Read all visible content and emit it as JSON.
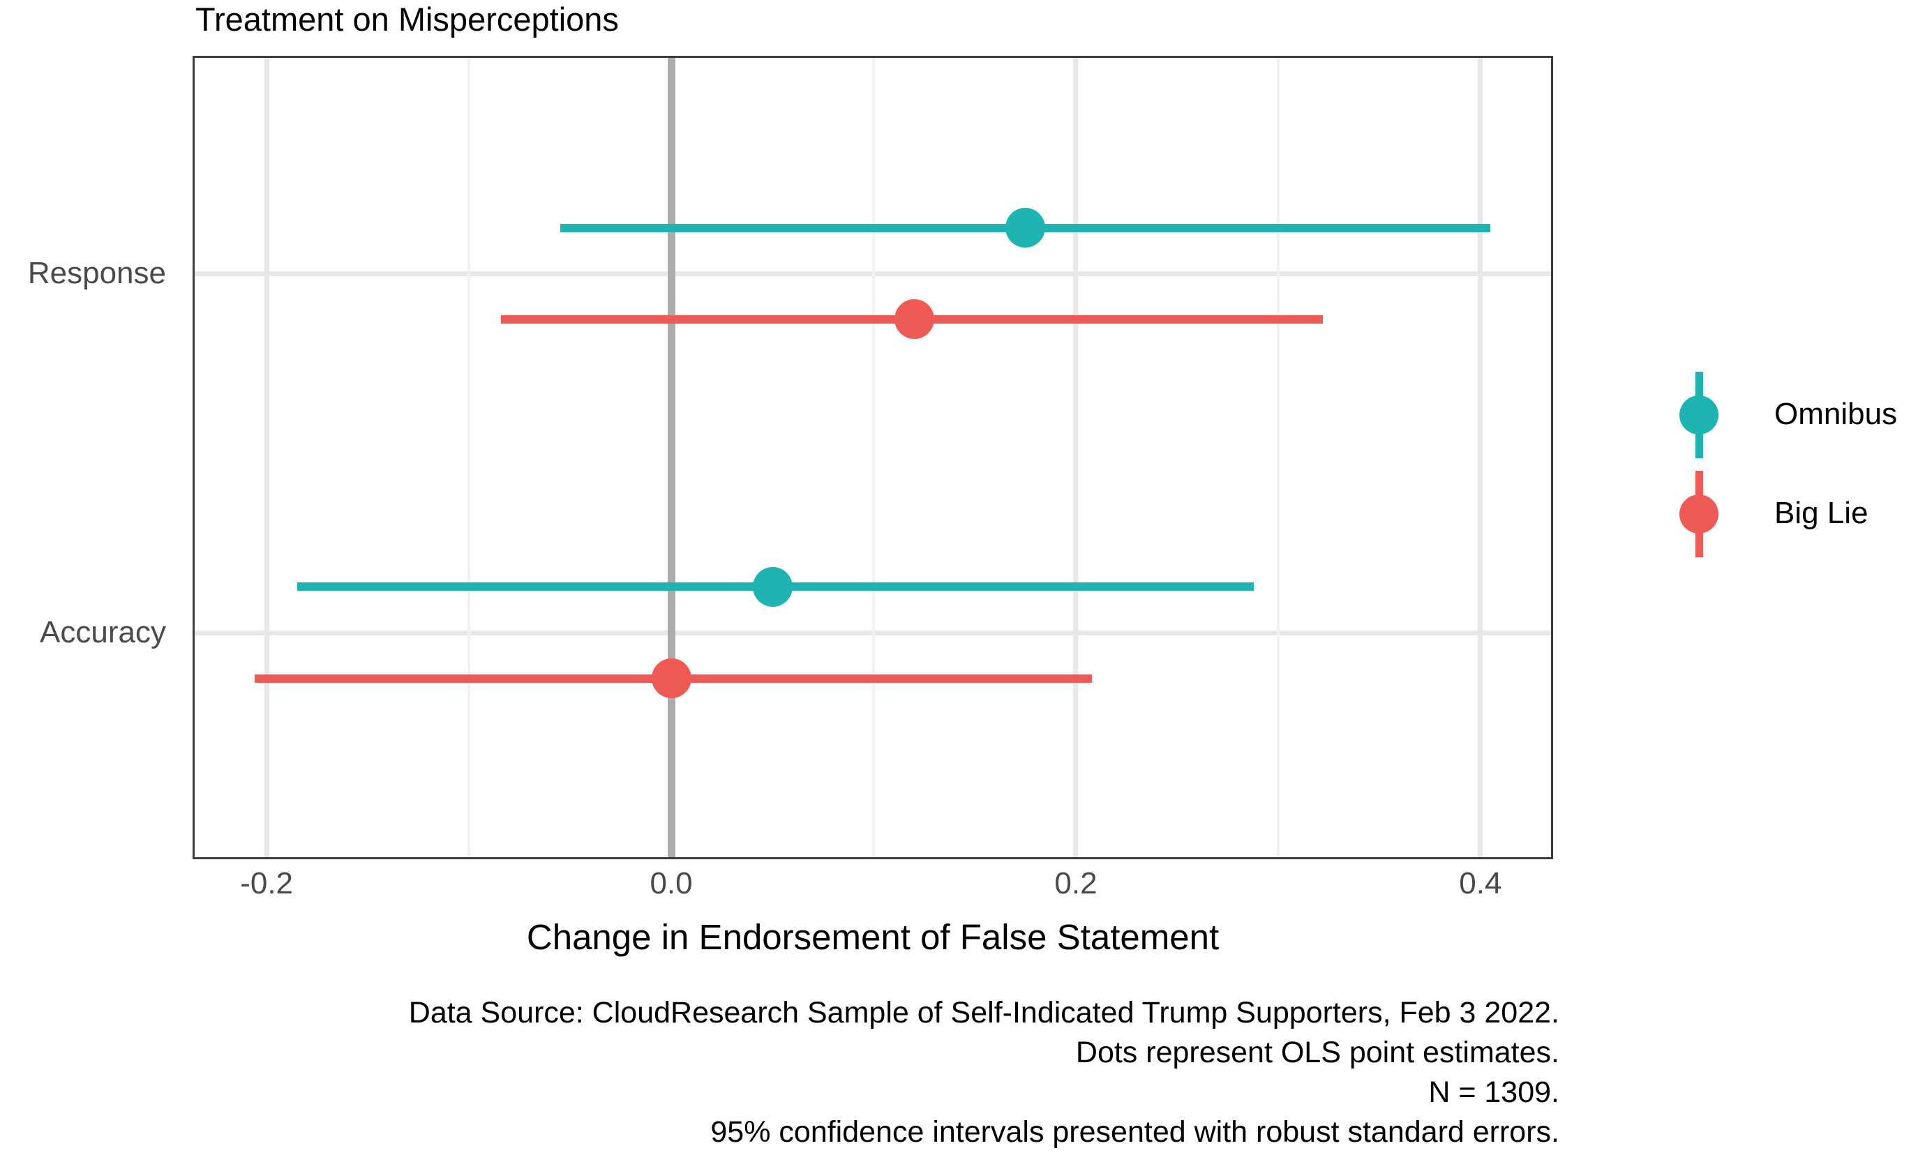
{
  "chart_data": {
    "type": "pointrange",
    "title": "Treatment on Misperceptions",
    "xlabel": "Change in Endorsement of False Statement",
    "caption_lines": [
      "Data Source: CloudResearch Sample of Self-Indicated Trump Supporters, Feb 3 2022.",
      "Dots represent OLS point estimates.",
      "N = 1309.",
      "95% confidence intervals presented with robust standard errors."
    ],
    "x_axis": {
      "domain": [
        -0.2366,
        0.4359
      ],
      "ticks": [
        -0.2,
        0.0,
        0.2,
        0.4
      ],
      "tick_labels": [
        "-0.2",
        "0.0",
        "0.2",
        "0.4"
      ],
      "minor_ticks": [
        -0.1,
        0.1,
        0.3
      ]
    },
    "y_categories": [
      {
        "label": "Response",
        "center_frac": 0.271
      },
      {
        "label": "Accuracy",
        "center_frac": 0.718
      }
    ],
    "reference_line_x": 0.0,
    "legend_position": "right",
    "series": [
      {
        "name": "Omnibus",
        "color": "#1EB4B1",
        "offset_frac": -0.057,
        "points": [
          {
            "category": "Response",
            "estimate": 0.175,
            "ci_low": -0.055,
            "ci_high": 0.405
          },
          {
            "category": "Accuracy",
            "estimate": 0.05,
            "ci_low": -0.185,
            "ci_high": 0.288
          }
        ]
      },
      {
        "name": "Big Lie",
        "color": "#F05A55",
        "offset_frac": 0.057,
        "points": [
          {
            "category": "Response",
            "estimate": 0.12,
            "ci_low": -0.084,
            "ci_high": 0.322
          },
          {
            "category": "Accuracy",
            "estimate": 0.0,
            "ci_low": -0.206,
            "ci_high": 0.208
          }
        ]
      }
    ],
    "colors": {
      "grid_major": "#E8E8E8",
      "grid_minor": "#F2F2F2",
      "zero_line": "#ACACAC",
      "axis_text": "#4A4A4A",
      "panel_border": "#3D3D3D"
    }
  }
}
